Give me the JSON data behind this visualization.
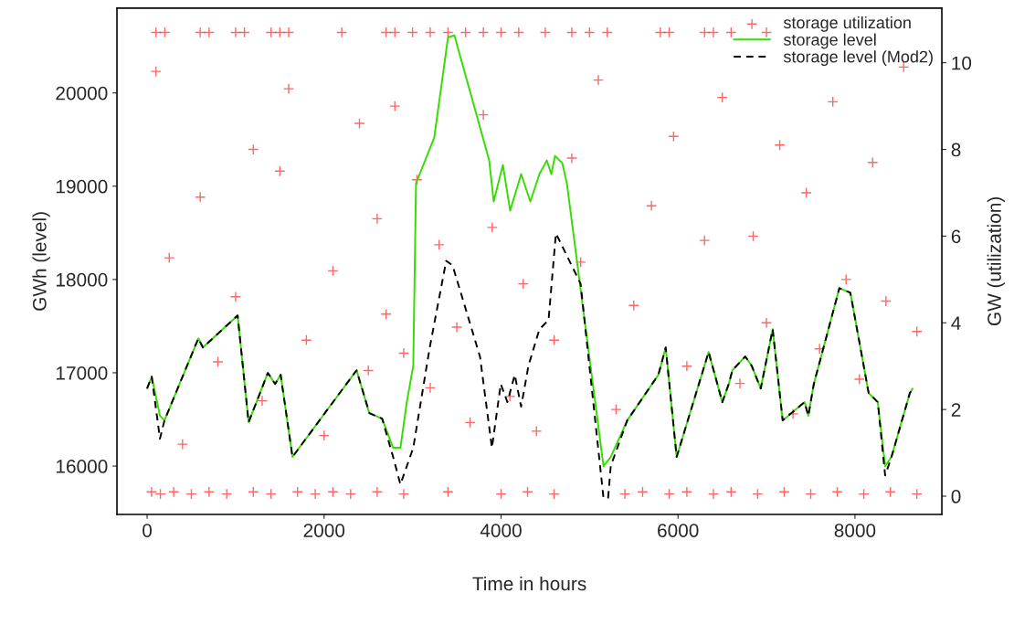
{
  "chart_data": {
    "type": "line",
    "xlabel": "Time in hours",
    "ylabel": "GWh (level)",
    "y2label": "GW (utilization)",
    "xlim": [
      -341,
      8982
    ],
    "xticks": [
      0,
      2000,
      4000,
      6000,
      8000
    ],
    "ylim": [
      15482,
      20909
    ],
    "yticks": [
      16000,
      17000,
      18000,
      19000,
      20000
    ],
    "y2lim": [
      -0.42,
      11.26
    ],
    "y2ticks": [
      0,
      2,
      4,
      6,
      8,
      10
    ],
    "grid": false,
    "legend": "top right",
    "series": [
      {
        "name": "storage utilization",
        "type": "scatter",
        "axis": "y2",
        "marker": "cross",
        "color": "#ff0000",
        "x": [
          100,
          200,
          600,
          700,
          1000,
          1100,
          1400,
          1500,
          1600,
          2200,
          2700,
          2800,
          3000,
          3200,
          3400,
          3600,
          3800,
          4000,
          4200,
          4500,
          4800,
          5000,
          5200,
          5800,
          5900,
          6300,
          6400,
          6600,
          7000,
          50,
          150,
          300,
          500,
          700,
          900,
          1200,
          1400,
          1700,
          1900,
          2100,
          2300,
          2600,
          2900,
          3400,
          4000,
          4300,
          4600,
          5400,
          5600,
          5900,
          6100,
          6400,
          6600,
          6900,
          7200,
          7500,
          7800,
          8100,
          8400,
          8700,
          100,
          250,
          400,
          600,
          800,
          1000,
          1200,
          1300,
          1500,
          1600,
          1800,
          2000,
          2100,
          2400,
          2500,
          2600,
          2700,
          2800,
          2900,
          3050,
          3200,
          3300,
          3500,
          3650,
          3800,
          3900,
          4100,
          4250,
          4400,
          4600,
          4800,
          4900,
          5100,
          5300,
          5500,
          5700,
          5950,
          6100,
          6300,
          6500,
          6700,
          6850,
          7000,
          7150,
          7300,
          7450,
          7600,
          7750,
          7900,
          8050,
          8200,
          8350,
          8550,
          8700
        ],
        "values": [
          10.7,
          10.7,
          10.7,
          10.7,
          10.7,
          10.7,
          10.7,
          10.7,
          10.7,
          10.7,
          10.7,
          10.7,
          10.7,
          10.7,
          10.7,
          10.7,
          10.7,
          10.7,
          10.7,
          10.7,
          10.7,
          10.7,
          10.7,
          10.7,
          10.7,
          10.7,
          10.7,
          10.7,
          10.7,
          0.1,
          0.05,
          0.1,
          0.05,
          0.1,
          0.05,
          0.1,
          0.05,
          0.1,
          0.05,
          0.1,
          0.05,
          0.1,
          0.05,
          0.1,
          0.05,
          0.1,
          0.05,
          0.05,
          0.1,
          0.05,
          0.1,
          0.05,
          0.1,
          0.05,
          0.1,
          0.05,
          0.1,
          0.05,
          0.1,
          0.05,
          9.8,
          5.5,
          1.2,
          6.9,
          3.1,
          4.6,
          8.0,
          2.2,
          7.5,
          9.4,
          3.6,
          1.4,
          5.2,
          8.6,
          2.9,
          6.4,
          4.2,
          9.0,
          3.3,
          7.3,
          2.5,
          5.8,
          3.9,
          1.7,
          8.8,
          6.2,
          2.3,
          4.9,
          1.5,
          3.6,
          7.8,
          5.4,
          9.6,
          2.0,
          4.4,
          6.7,
          8.3,
          3.0,
          5.9,
          9.2,
          2.6,
          6.0,
          4.0,
          8.1,
          1.9,
          7.0,
          3.4,
          9.1,
          5.0,
          2.7,
          7.7,
          4.5,
          9.9,
          3.8
        ]
      },
      {
        "name": "storage level",
        "color": "#33dd00",
        "line_style": "solid",
        "x": [
          0,
          52,
          145,
          196,
          579,
          630,
          1023,
          1147,
          1364,
          1447,
          1509,
          1643,
          2367,
          2512,
          2656,
          2780,
          2863,
          2935,
          3008,
          3039,
          3245,
          3401,
          3473,
          3866,
          3917,
          4021,
          4103,
          4227,
          4331,
          4434,
          4517,
          4568,
          4610,
          4692,
          4744,
          5158,
          5240,
          5426,
          5778,
          5861,
          5985,
          6346,
          6501,
          6574,
          6615,
          6760,
          6832,
          6935,
          7070,
          7183,
          7431,
          7473,
          7535,
          7824,
          7948,
          8155,
          8258,
          8341,
          8413,
          8620,
          8651
        ],
        "values": [
          16831,
          16958,
          16538,
          16489,
          17369,
          17271,
          17614,
          16469,
          16998,
          16880,
          16978,
          16098,
          17027,
          16567,
          16509,
          16196,
          16196,
          16685,
          17076,
          19032,
          19521,
          20597,
          20616,
          19276,
          18836,
          19227,
          18738,
          19130,
          18836,
          19130,
          19276,
          19130,
          19325,
          19247,
          19032,
          16000,
          16098,
          16489,
          16978,
          17271,
          16098,
          17222,
          16685,
          16880,
          17027,
          17174,
          17076,
          16831,
          17467,
          16489,
          16685,
          16538,
          16880,
          17907,
          17858,
          16782,
          16685,
          16000,
          16098,
          16782,
          16831
        ]
      },
      {
        "name": "storage level (Mod2)",
        "color": "#000000",
        "line_style": "dashed",
        "x": [
          0,
          52,
          145,
          196,
          579,
          630,
          1023,
          1147,
          1364,
          1447,
          1509,
          1643,
          2367,
          2512,
          2656,
          2780,
          2863,
          3008,
          3194,
          3380,
          3452,
          3762,
          3897,
          3997,
          4072,
          4155,
          4227,
          4310,
          4434,
          4537,
          4620,
          4899,
          5158,
          5210,
          5240,
          5426,
          5778,
          5861,
          5985,
          6346,
          6501,
          6574,
          6615,
          6760,
          6832,
          6935,
          7070,
          7183,
          7431,
          7473,
          7535,
          7824,
          7948,
          8155,
          8258,
          8341,
          8413,
          8620,
          8651
        ],
        "values": [
          16831,
          16958,
          16293,
          16489,
          17369,
          17271,
          17614,
          16469,
          16998,
          16880,
          16978,
          16098,
          17027,
          16567,
          16509,
          16098,
          15804,
          16196,
          17271,
          18200,
          18151,
          17174,
          16196,
          16880,
          16685,
          16978,
          16636,
          17076,
          17467,
          17565,
          18494,
          17956,
          15658,
          15658,
          16000,
          16489,
          16978,
          17271,
          16098,
          17222,
          16685,
          16880,
          17027,
          17174,
          17076,
          16831,
          17467,
          16489,
          16685,
          16538,
          16880,
          17907,
          17858,
          16782,
          16685,
          15900,
          16098,
          16782,
          16831
        ]
      }
    ]
  }
}
